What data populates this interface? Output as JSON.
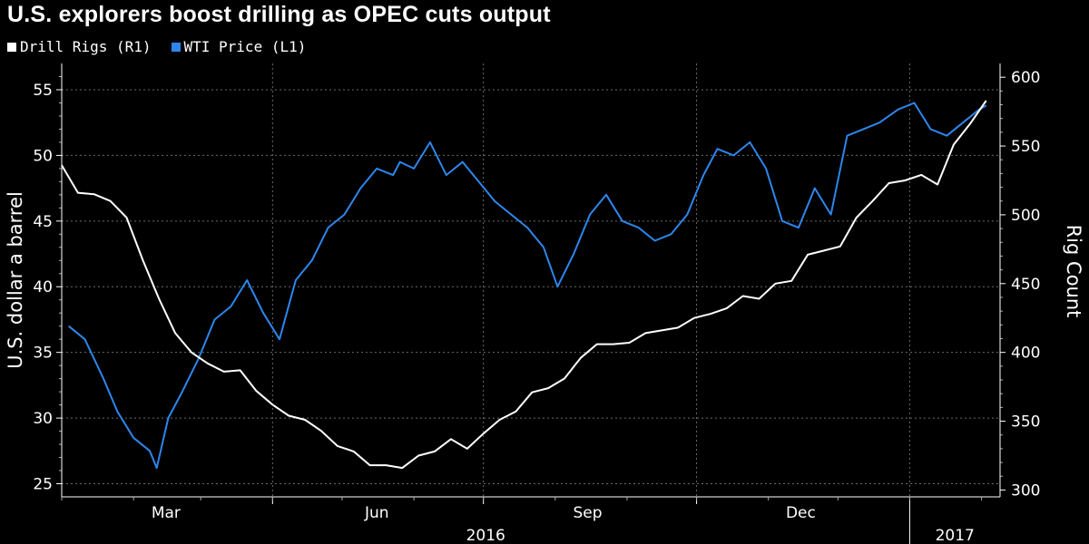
{
  "title": "U.S. explorers boost drilling as OPEC cuts output",
  "legend": [
    {
      "label": "Drill Rigs (R1)",
      "color": "#ffffff"
    },
    {
      "label": "WTI Price (L1)",
      "color": "#2e86ec"
    }
  ],
  "chart_data": {
    "type": "line",
    "title": "U.S. explorers boost drilling as OPEC cuts output",
    "ylabel": "U.S. dollar a barrel",
    "y2label": "Rig Count",
    "ylim": [
      24,
      57
    ],
    "y2lim": [
      295,
      610
    ],
    "yticks": [
      25,
      30,
      35,
      40,
      45,
      50,
      55
    ],
    "y2ticks": [
      300,
      350,
      400,
      450,
      500,
      550,
      600
    ],
    "xticks": [
      "Mar",
      "Jun",
      "Sep",
      "Dec"
    ],
    "year_labels": [
      "2016",
      "2017"
    ],
    "grid": true,
    "series": [
      {
        "name": "WTI Price (L1)",
        "axis": "left",
        "color": "#2e86ec",
        "x": [
          "2016-01-04",
          "2016-01-11",
          "2016-01-19",
          "2016-01-25",
          "2016-02-01",
          "2016-02-08",
          "2016-02-11",
          "2016-02-16",
          "2016-02-22",
          "2016-02-29",
          "2016-03-07",
          "2016-03-14",
          "2016-03-21",
          "2016-03-28",
          "2016-04-04",
          "2016-04-11",
          "2016-04-18",
          "2016-04-25",
          "2016-05-02",
          "2016-05-09",
          "2016-05-16",
          "2016-05-23",
          "2016-05-26",
          "2016-06-01",
          "2016-06-08",
          "2016-06-15",
          "2016-06-22",
          "2016-06-29",
          "2016-07-06",
          "2016-07-13",
          "2016-07-20",
          "2016-07-27",
          "2016-08-02",
          "2016-08-09",
          "2016-08-16",
          "2016-08-23",
          "2016-08-30",
          "2016-09-06",
          "2016-09-13",
          "2016-09-20",
          "2016-09-27",
          "2016-10-04",
          "2016-10-10",
          "2016-10-17",
          "2016-10-24",
          "2016-10-31",
          "2016-11-07",
          "2016-11-14",
          "2016-11-21",
          "2016-11-28",
          "2016-12-05",
          "2016-12-12",
          "2016-12-19",
          "2016-12-27",
          "2017-01-03",
          "2017-01-10",
          "2017-01-17",
          "2017-01-24",
          "2017-01-31",
          "2017-02-03"
        ],
        "values": [
          37.0,
          36.0,
          33.0,
          30.5,
          28.5,
          27.5,
          26.2,
          30.0,
          32.0,
          34.5,
          37.5,
          38.5,
          40.5,
          38.0,
          36.0,
          40.5,
          42.0,
          44.5,
          45.5,
          47.5,
          49.0,
          48.5,
          49.5,
          49.0,
          51.0,
          48.5,
          49.5,
          48.0,
          46.5,
          45.5,
          44.5,
          43.0,
          40.0,
          42.5,
          45.5,
          47.0,
          45.0,
          44.5,
          43.5,
          44.0,
          45.5,
          48.5,
          50.5,
          50.0,
          51.0,
          49.0,
          45.0,
          44.5,
          47.5,
          45.5,
          51.5,
          52.0,
          52.5,
          53.5,
          54.0,
          52.0,
          51.5,
          52.5,
          53.5,
          53.8
        ]
      },
      {
        "name": "Drill Rigs (R1)",
        "axis": "right",
        "color": "#ffffff",
        "x": [
          "2016-01-01",
          "2016-01-08",
          "2016-01-15",
          "2016-01-22",
          "2016-01-29",
          "2016-02-05",
          "2016-02-12",
          "2016-02-19",
          "2016-02-26",
          "2016-03-04",
          "2016-03-11",
          "2016-03-18",
          "2016-03-25",
          "2016-04-01",
          "2016-04-08",
          "2016-04-15",
          "2016-04-22",
          "2016-04-29",
          "2016-05-06",
          "2016-05-13",
          "2016-05-20",
          "2016-05-27",
          "2016-06-03",
          "2016-06-10",
          "2016-06-17",
          "2016-06-24",
          "2016-07-01",
          "2016-07-08",
          "2016-07-15",
          "2016-07-22",
          "2016-07-29",
          "2016-08-05",
          "2016-08-12",
          "2016-08-19",
          "2016-08-26",
          "2016-09-02",
          "2016-09-09",
          "2016-09-16",
          "2016-09-23",
          "2016-09-30",
          "2016-10-07",
          "2016-10-14",
          "2016-10-21",
          "2016-10-28",
          "2016-11-04",
          "2016-11-11",
          "2016-11-18",
          "2016-11-25",
          "2016-12-02",
          "2016-12-09",
          "2016-12-16",
          "2016-12-23",
          "2016-12-30",
          "2017-01-06",
          "2017-01-13",
          "2017-01-20",
          "2017-01-27",
          "2017-02-03"
        ],
        "values": [
          536,
          516,
          515,
          510,
          498,
          467,
          439,
          414,
          400,
          392,
          386,
          387,
          372,
          362,
          354,
          351,
          343,
          332,
          328,
          318,
          318,
          316,
          325,
          328,
          337,
          330,
          341,
          351,
          357,
          371,
          374,
          381,
          396,
          406,
          406,
          407,
          414,
          416,
          418,
          425,
          428,
          432,
          441,
          439,
          450,
          452,
          471,
          474,
          477,
          498,
          510,
          523,
          525,
          529,
          522,
          551,
          566,
          583
        ]
      }
    ]
  }
}
